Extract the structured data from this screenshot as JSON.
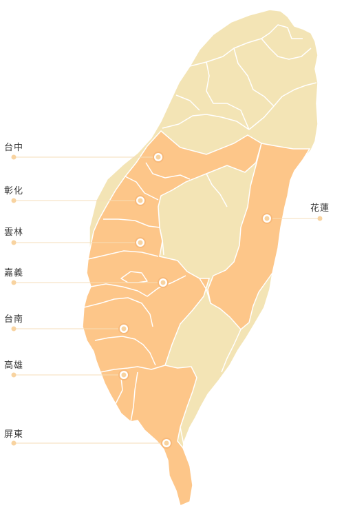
{
  "colors": {
    "land_base": "#F3E4B5",
    "land_highlight": "#FDC689",
    "border": "#FFFFFF",
    "leader_line": "#F6DDB8",
    "dot": "#F8D3A0",
    "marker_outer": "#F7B97A",
    "marker_inner": "#FFFFFF",
    "label_text": "#333333"
  },
  "labels": [
    {
      "key": "taichung",
      "text": "台中"
    },
    {
      "key": "changhua",
      "text": "彰化"
    },
    {
      "key": "yunlin",
      "text": "雲林"
    },
    {
      "key": "chiayi",
      "text": "嘉義"
    },
    {
      "key": "tainan",
      "text": "台南"
    },
    {
      "key": "kaohsiung",
      "text": "高雄"
    },
    {
      "key": "pingtung",
      "text": "屏東"
    },
    {
      "key": "hualien",
      "text": "花蓮"
    }
  ]
}
